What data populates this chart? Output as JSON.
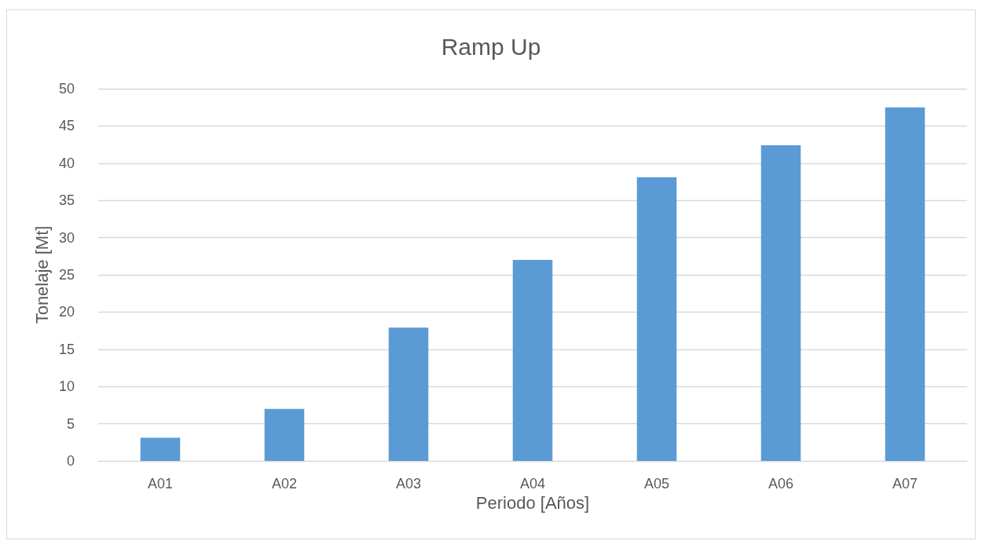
{
  "chart_data": {
    "type": "bar",
    "title": "Ramp Up",
    "xlabel": "Periodo [Años]",
    "ylabel": "Tonelaje [Mt]",
    "categories": [
      "A01",
      "A02",
      "A03",
      "A04",
      "A05",
      "A06",
      "A07"
    ],
    "values": [
      3.1,
      7.0,
      17.9,
      27.0,
      38.1,
      42.4,
      47.5
    ],
    "color": "#5b9bd5",
    "ylim": [
      0,
      50
    ],
    "yticks": [
      0,
      5,
      10,
      15,
      20,
      25,
      30,
      35,
      40,
      45,
      50
    ],
    "grid": "y"
  }
}
